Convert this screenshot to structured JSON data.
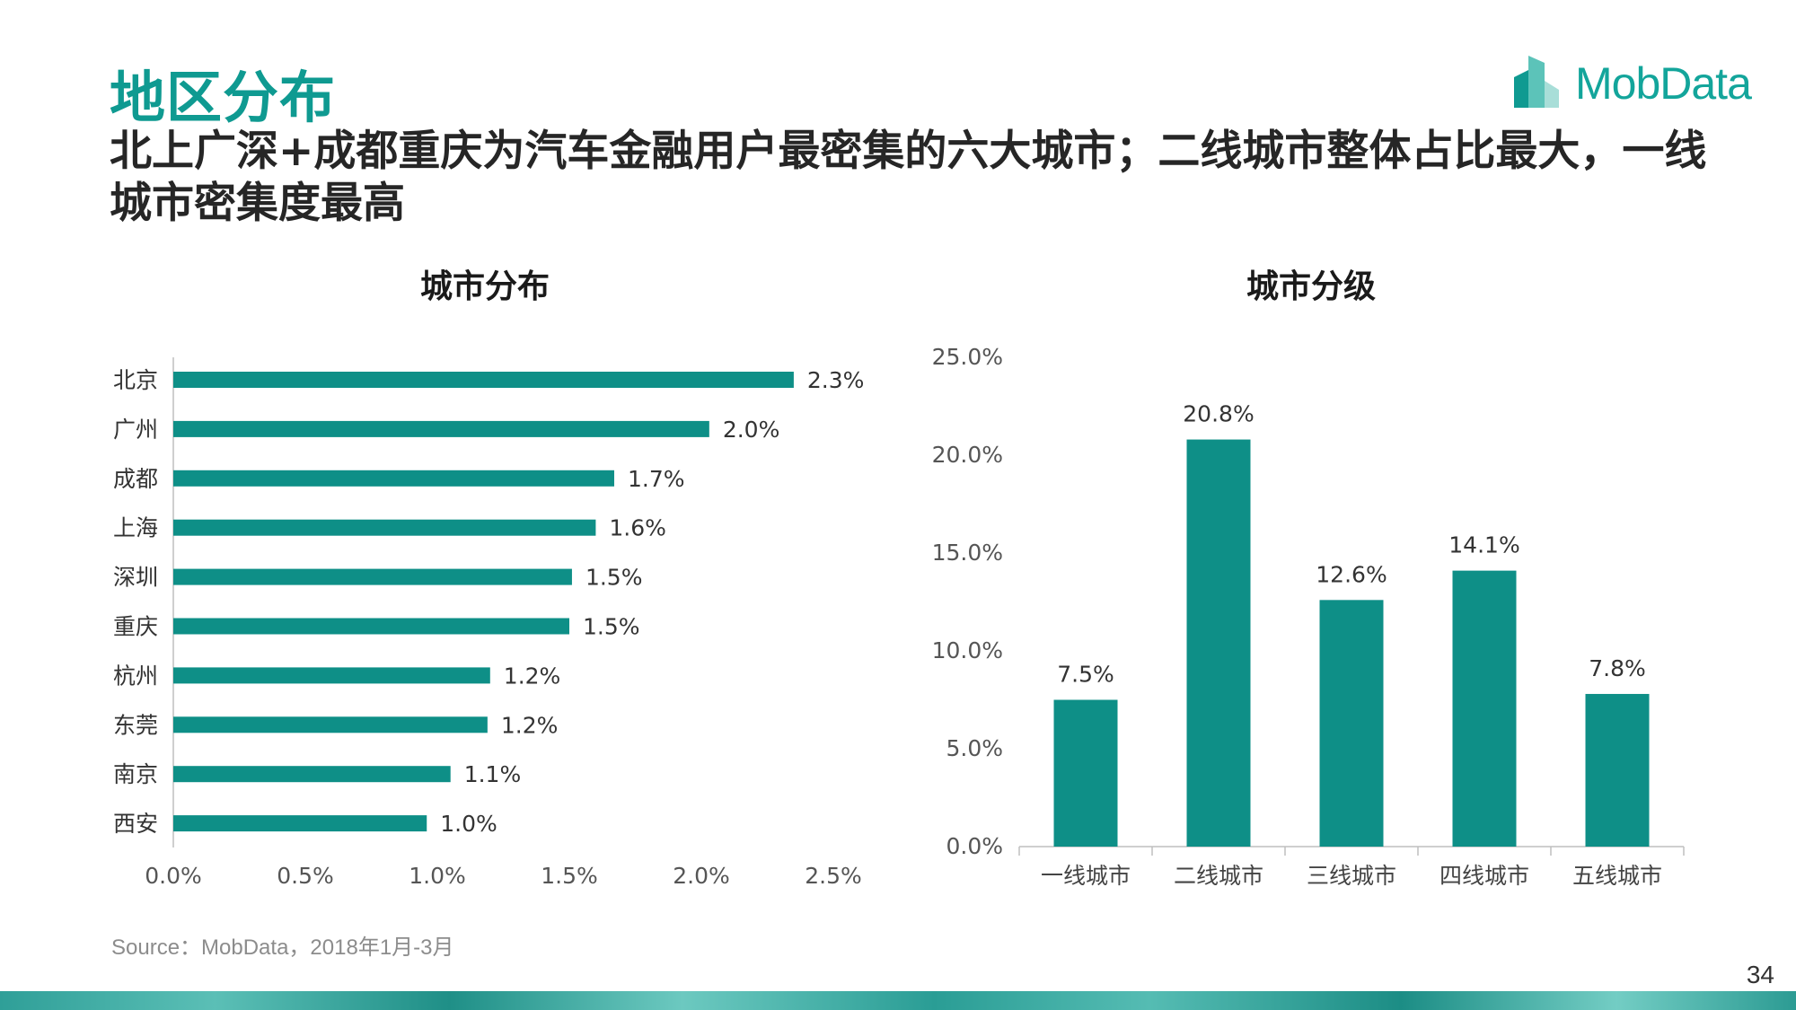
{
  "header": {
    "title": "地区分布",
    "subtitle": "北上广深+成都重庆为汽车金融用户最密集的六大城市；二线城市整体占比最大，一线城市密集度最高"
  },
  "logo": {
    "text": "MobData",
    "icon": "mobdata-logo-icon"
  },
  "source": "Source：MobData，2018年1月-3月",
  "page_number": "34",
  "colors": {
    "accent": "#0f9a91",
    "bar": "#0e8f87",
    "text": "#262626"
  },
  "chart_data": [
    {
      "type": "bar",
      "orientation": "horizontal",
      "title": "城市分布",
      "categories": [
        "北京",
        "广州",
        "成都",
        "上海",
        "深圳",
        "重庆",
        "杭州",
        "东莞",
        "南京",
        "西安"
      ],
      "values": [
        2.35,
        2.03,
        1.67,
        1.6,
        1.51,
        1.5,
        1.2,
        1.19,
        1.05,
        0.96
      ],
      "data_labels": [
        "2.3%",
        "2.0%",
        "1.7%",
        "1.6%",
        "1.5%",
        "1.5%",
        "1.2%",
        "1.2%",
        "1.1%",
        "1.0%"
      ],
      "xlim": [
        0,
        2.5
      ],
      "xticks": [
        "0.0%",
        "0.5%",
        "1.0%",
        "1.5%",
        "2.0%",
        "2.5%"
      ],
      "grid": false
    },
    {
      "type": "bar",
      "orientation": "vertical",
      "title": "城市分级",
      "categories": [
        "一线城市",
        "二线城市",
        "三线城市",
        "四线城市",
        "五线城市"
      ],
      "values": [
        7.5,
        20.8,
        12.6,
        14.1,
        7.8
      ],
      "data_labels": [
        "7.5%",
        "20.8%",
        "12.6%",
        "14.1%",
        "7.8%"
      ],
      "ylim": [
        0,
        25
      ],
      "yticks": [
        "0.0%",
        "5.0%",
        "10.0%",
        "15.0%",
        "20.0%",
        "25.0%"
      ],
      "grid": false
    }
  ]
}
